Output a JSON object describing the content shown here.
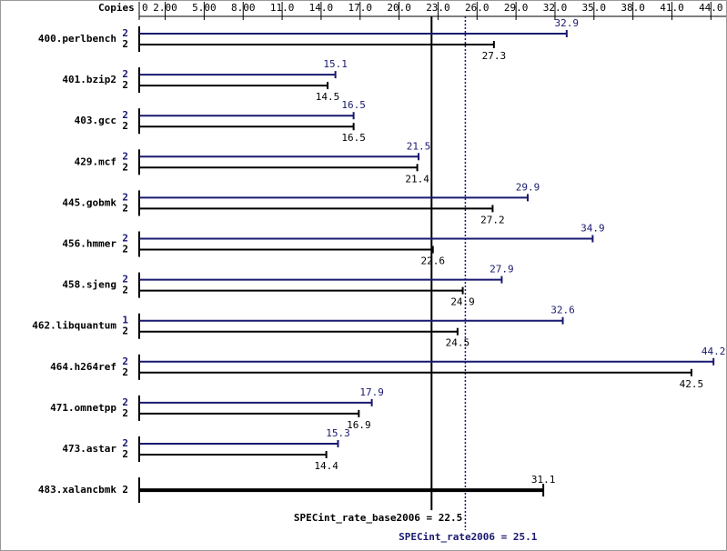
{
  "chart_data": {
    "type": "spec-bar",
    "x_label": "Copies",
    "categories": [
      "400.perlbench",
      "401.bzip2",
      "403.gcc",
      "429.mcf",
      "445.gobmk",
      "456.hmmer",
      "458.sjeng",
      "462.libquantum",
      "464.h264ref",
      "471.omnetpp",
      "473.astar",
      "483.xalancbmk"
    ],
    "series": [
      {
        "color": "#191970",
        "values": [
          32.9,
          15.1,
          16.5,
          21.5,
          29.9,
          34.9,
          27.9,
          32.6,
          44.2,
          17.9,
          15.3,
          null
        ],
        "copies": [
          2,
          2,
          2,
          2,
          2,
          2,
          2,
          1,
          2,
          2,
          2,
          null
        ]
      },
      {
        "color": "#000000",
        "values": [
          27.3,
          14.5,
          16.5,
          21.4,
          27.2,
          22.6,
          24.9,
          24.5,
          42.5,
          16.9,
          14.4,
          31.1
        ],
        "copies": [
          2,
          2,
          2,
          2,
          2,
          2,
          2,
          2,
          2,
          2,
          2,
          2
        ]
      }
    ],
    "xlim": [
      0,
      45
    ],
    "xticks": [
      0,
      {
        "value": 2,
        "label": "2.00"
      },
      {
        "value": 5,
        "label": "5.00"
      },
      {
        "value": 8,
        "label": "8.00"
      },
      {
        "value": 11,
        "label": "11.0"
      },
      {
        "value": 14,
        "label": "14.0"
      },
      {
        "value": 17,
        "label": "17.0"
      },
      {
        "value": 20,
        "label": "20.0"
      },
      {
        "value": 23,
        "label": "23.0"
      },
      {
        "value": 26,
        "label": "26.0"
      },
      {
        "value": 29,
        "label": "29.0"
      },
      {
        "value": 32,
        "label": "32.0"
      },
      {
        "value": 35,
        "label": "35.0"
      },
      {
        "value": 38,
        "label": "38.0"
      },
      {
        "value": 41,
        "label": "41.0"
      },
      {
        "value": 44,
        "label": "44.0"
      }
    ],
    "base_metric": {
      "value": 22.5,
      "label": "SPECint_rate_base2006 = 22.5",
      "color": "#000000"
    },
    "peak_metric": {
      "value": 25.1,
      "label": "SPECint_rate2006 = 25.1",
      "color": "#191970"
    }
  }
}
